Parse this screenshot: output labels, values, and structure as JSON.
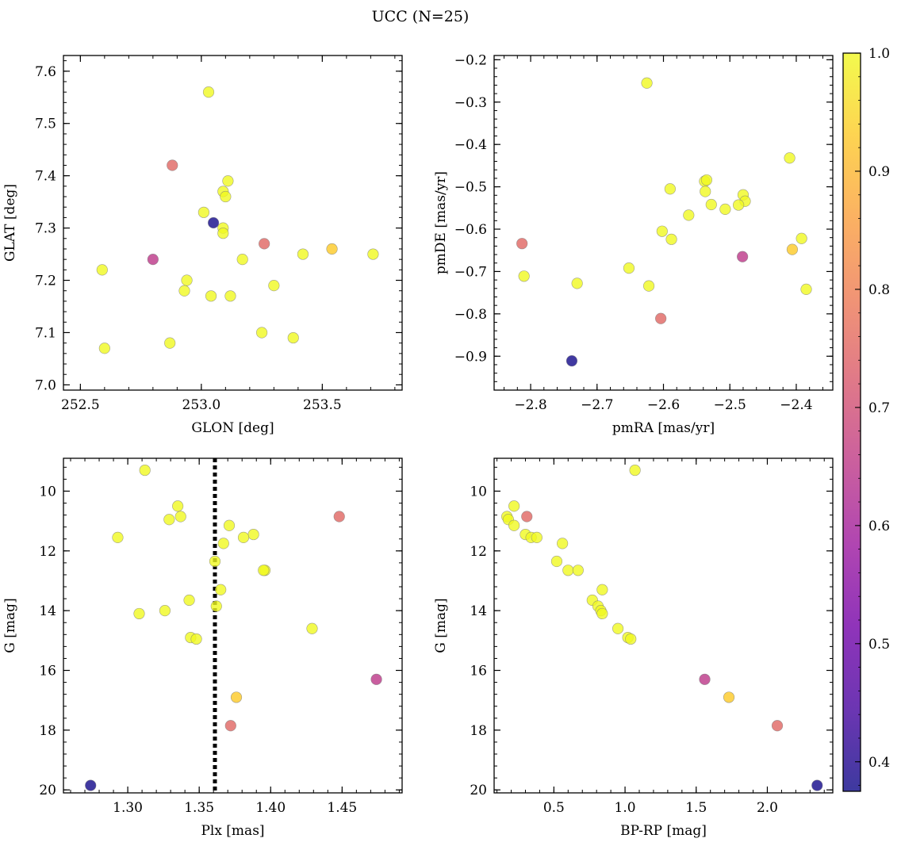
{
  "figure_title": "UCC (N=25)",
  "colorbar": {
    "range": [
      0.375,
      1.0
    ],
    "ticks": [
      0.4,
      0.5,
      0.6,
      0.7,
      0.8,
      0.9,
      1.0
    ],
    "tick_labels": [
      "0.4",
      "0.5",
      "0.6",
      "0.7",
      "0.8",
      "0.9",
      "1.0"
    ],
    "colormap": "plasma",
    "colormap_stops": [
      "#0d0887",
      "#47039f",
      "#7301a8",
      "#9c179e",
      "#bd3786",
      "#d8576b",
      "#ed7953",
      "#fa9e3b",
      "#fdc926",
      "#f0f921"
    ],
    "marker_alpha": 0.8
  },
  "chart_data": [
    {
      "type": "scatter",
      "xlabel": "GLON [deg]",
      "ylabel": "GLAT [deg]",
      "xlim": [
        252.43,
        253.83
      ],
      "ylim": [
        6.99,
        7.63
      ],
      "xticks": [
        252.5,
        253.0,
        253.5
      ],
      "xtick_labels": [
        "252.5",
        "253.0",
        "253.5"
      ],
      "yticks": [
        7.0,
        7.1,
        7.2,
        7.3,
        7.4,
        7.5,
        7.6
      ],
      "ytick_labels": [
        "7.0",
        "7.1",
        "7.2",
        "7.3",
        "7.4",
        "7.5",
        "7.6"
      ],
      "y_inverted": false,
      "points": [
        {
          "x": 253.03,
          "y": 7.56,
          "p": 1.0
        },
        {
          "x": 252.88,
          "y": 7.42,
          "p": 0.75
        },
        {
          "x": 253.11,
          "y": 7.39,
          "p": 1.0
        },
        {
          "x": 253.09,
          "y": 7.37,
          "p": 1.0
        },
        {
          "x": 253.1,
          "y": 7.36,
          "p": 1.0
        },
        {
          "x": 253.01,
          "y": 7.33,
          "p": 1.0
        },
        {
          "x": 253.05,
          "y": 7.31,
          "p": 0.38
        },
        {
          "x": 253.09,
          "y": 7.3,
          "p": 1.0
        },
        {
          "x": 253.09,
          "y": 7.29,
          "p": 1.0
        },
        {
          "x": 253.26,
          "y": 7.27,
          "p": 0.75
        },
        {
          "x": 253.54,
          "y": 7.26,
          "p": 0.93
        },
        {
          "x": 253.42,
          "y": 7.25,
          "p": 1.0
        },
        {
          "x": 253.71,
          "y": 7.25,
          "p": 1.0
        },
        {
          "x": 252.8,
          "y": 7.24,
          "p": 0.65
        },
        {
          "x": 253.17,
          "y": 7.24,
          "p": 1.0
        },
        {
          "x": 252.59,
          "y": 7.22,
          "p": 1.0
        },
        {
          "x": 252.94,
          "y": 7.2,
          "p": 1.0
        },
        {
          "x": 253.3,
          "y": 7.19,
          "p": 1.0
        },
        {
          "x": 252.93,
          "y": 7.18,
          "p": 1.0
        },
        {
          "x": 253.04,
          "y": 7.17,
          "p": 1.0
        },
        {
          "x": 253.12,
          "y": 7.17,
          "p": 1.0
        },
        {
          "x": 253.25,
          "y": 7.1,
          "p": 1.0
        },
        {
          "x": 253.38,
          "y": 7.09,
          "p": 1.0
        },
        {
          "x": 252.87,
          "y": 7.08,
          "p": 1.0
        },
        {
          "x": 252.6,
          "y": 7.07,
          "p": 1.0
        }
      ]
    },
    {
      "type": "scatter",
      "xlabel": "pmRA [mas/yr]",
      "ylabel": "pmDE [mas/yr]",
      "xlim": [
        -2.855,
        -2.345
      ],
      "ylim": [
        -0.98,
        -0.19
      ],
      "xticks": [
        -2.8,
        -2.7,
        -2.6,
        -2.5,
        -2.4
      ],
      "xtick_labels": [
        "−2.8",
        "−2.7",
        "−2.6",
        "−2.5",
        "−2.4"
      ],
      "yticks": [
        -0.9,
        -0.8,
        -0.7,
        -0.6,
        -0.5,
        -0.4,
        -0.3,
        -0.2
      ],
      "ytick_labels": [
        "−0.9",
        "−0.8",
        "−0.7",
        "−0.6",
        "−0.5",
        "−0.4",
        "−0.3",
        "−0.2"
      ],
      "y_inverted": false,
      "points": [
        {
          "x": -2.625,
          "y": -0.255,
          "p": 1.0
        },
        {
          "x": -2.41,
          "y": -0.432,
          "p": 1.0
        },
        {
          "x": -2.538,
          "y": -0.487,
          "p": 1.0
        },
        {
          "x": -2.535,
          "y": -0.484,
          "p": 1.0
        },
        {
          "x": -2.59,
          "y": -0.505,
          "p": 1.0
        },
        {
          "x": -2.537,
          "y": -0.511,
          "p": 1.0
        },
        {
          "x": -2.48,
          "y": -0.519,
          "p": 1.0
        },
        {
          "x": -2.477,
          "y": -0.534,
          "p": 1.0
        },
        {
          "x": -2.528,
          "y": -0.542,
          "p": 1.0
        },
        {
          "x": -2.487,
          "y": -0.543,
          "p": 1.0
        },
        {
          "x": -2.507,
          "y": -0.553,
          "p": 1.0
        },
        {
          "x": -2.562,
          "y": -0.567,
          "p": 1.0
        },
        {
          "x": -2.602,
          "y": -0.605,
          "p": 1.0
        },
        {
          "x": -2.588,
          "y": -0.624,
          "p": 1.0
        },
        {
          "x": -2.392,
          "y": -0.622,
          "p": 1.0
        },
        {
          "x": -2.813,
          "y": -0.634,
          "p": 0.75
        },
        {
          "x": -2.406,
          "y": -0.648,
          "p": 0.93
        },
        {
          "x": -2.481,
          "y": -0.665,
          "p": 0.65
        },
        {
          "x": -2.652,
          "y": -0.692,
          "p": 1.0
        },
        {
          "x": -2.81,
          "y": -0.711,
          "p": 1.0
        },
        {
          "x": -2.73,
          "y": -0.728,
          "p": 1.0
        },
        {
          "x": -2.622,
          "y": -0.734,
          "p": 1.0
        },
        {
          "x": -2.385,
          "y": -0.742,
          "p": 1.0
        },
        {
          "x": -2.604,
          "y": -0.811,
          "p": 0.75
        },
        {
          "x": -2.738,
          "y": -0.911,
          "p": 0.38
        }
      ]
    },
    {
      "type": "scatter",
      "xlabel": "Plx [mas]",
      "ylabel": "G [mag]",
      "xlim": [
        1.255,
        1.492
      ],
      "ylim": [
        20.1,
        8.9
      ],
      "xticks": [
        1.3,
        1.35,
        1.4,
        1.45
      ],
      "xtick_labels": [
        "1.30",
        "1.35",
        "1.40",
        "1.45"
      ],
      "yticks": [
        10,
        12,
        14,
        16,
        18,
        20
      ],
      "ytick_labels": [
        "10",
        "12",
        "14",
        "16",
        "18",
        "20"
      ],
      "y_inverted": true,
      "vline": {
        "x": 1.361,
        "style": "dotted"
      },
      "points": [
        {
          "x": 1.312,
          "y": 9.3,
          "p": 1.0
        },
        {
          "x": 1.335,
          "y": 10.5,
          "p": 1.0
        },
        {
          "x": 1.337,
          "y": 10.85,
          "p": 1.0
        },
        {
          "x": 1.329,
          "y": 10.95,
          "p": 1.0
        },
        {
          "x": 1.448,
          "y": 10.85,
          "p": 0.75
        },
        {
          "x": 1.371,
          "y": 11.15,
          "p": 1.0
        },
        {
          "x": 1.388,
          "y": 11.45,
          "p": 1.0
        },
        {
          "x": 1.381,
          "y": 11.55,
          "p": 1.0
        },
        {
          "x": 1.293,
          "y": 11.55,
          "p": 1.0
        },
        {
          "x": 1.367,
          "y": 11.75,
          "p": 1.0
        },
        {
          "x": 1.361,
          "y": 12.35,
          "p": 1.0
        },
        {
          "x": 1.396,
          "y": 12.65,
          "p": 1.0
        },
        {
          "x": 1.395,
          "y": 12.65,
          "p": 1.0
        },
        {
          "x": 1.365,
          "y": 13.3,
          "p": 1.0
        },
        {
          "x": 1.343,
          "y": 13.65,
          "p": 1.0
        },
        {
          "x": 1.362,
          "y": 13.85,
          "p": 1.0
        },
        {
          "x": 1.326,
          "y": 14.0,
          "p": 1.0
        },
        {
          "x": 1.308,
          "y": 14.1,
          "p": 1.0
        },
        {
          "x": 1.429,
          "y": 14.6,
          "p": 1.0
        },
        {
          "x": 1.344,
          "y": 14.9,
          "p": 1.0
        },
        {
          "x": 1.348,
          "y": 14.95,
          "p": 1.0
        },
        {
          "x": 1.474,
          "y": 16.3,
          "p": 0.65
        },
        {
          "x": 1.376,
          "y": 16.9,
          "p": 0.93
        },
        {
          "x": 1.372,
          "y": 17.85,
          "p": 0.75
        },
        {
          "x": 1.274,
          "y": 19.85,
          "p": 0.38
        }
      ]
    },
    {
      "type": "scatter",
      "xlabel": "BP-RP [mag]",
      "ylabel": "G [mag]",
      "xlim": [
        0.08,
        2.46
      ],
      "ylim": [
        20.1,
        8.9
      ],
      "xticks": [
        0.5,
        1.0,
        1.5,
        2.0
      ],
      "xtick_labels": [
        "0.5",
        "1.0",
        "1.5",
        "2.0"
      ],
      "yticks": [
        10,
        12,
        14,
        16,
        18,
        20
      ],
      "ytick_labels": [
        "10",
        "12",
        "14",
        "16",
        "18",
        "20"
      ],
      "y_inverted": true,
      "points": [
        {
          "x": 1.07,
          "y": 9.3,
          "p": 1.0
        },
        {
          "x": 0.22,
          "y": 10.5,
          "p": 1.0
        },
        {
          "x": 0.17,
          "y": 10.85,
          "p": 1.0
        },
        {
          "x": 0.18,
          "y": 10.95,
          "p": 1.0
        },
        {
          "x": 0.31,
          "y": 10.85,
          "p": 0.75
        },
        {
          "x": 0.22,
          "y": 11.15,
          "p": 1.0
        },
        {
          "x": 0.3,
          "y": 11.45,
          "p": 1.0
        },
        {
          "x": 0.34,
          "y": 11.55,
          "p": 1.0
        },
        {
          "x": 0.38,
          "y": 11.55,
          "p": 1.0
        },
        {
          "x": 0.56,
          "y": 11.75,
          "p": 1.0
        },
        {
          "x": 0.52,
          "y": 12.35,
          "p": 1.0
        },
        {
          "x": 0.6,
          "y": 12.65,
          "p": 1.0
        },
        {
          "x": 0.67,
          "y": 12.65,
          "p": 1.0
        },
        {
          "x": 0.84,
          "y": 13.3,
          "p": 1.0
        },
        {
          "x": 0.77,
          "y": 13.65,
          "p": 1.0
        },
        {
          "x": 0.81,
          "y": 13.85,
          "p": 1.0
        },
        {
          "x": 0.83,
          "y": 14.0,
          "p": 1.0
        },
        {
          "x": 0.84,
          "y": 14.1,
          "p": 1.0
        },
        {
          "x": 0.95,
          "y": 14.6,
          "p": 1.0
        },
        {
          "x": 1.02,
          "y": 14.9,
          "p": 1.0
        },
        {
          "x": 1.04,
          "y": 14.95,
          "p": 1.0
        },
        {
          "x": 1.56,
          "y": 16.3,
          "p": 0.65
        },
        {
          "x": 1.73,
          "y": 16.9,
          "p": 0.93
        },
        {
          "x": 2.07,
          "y": 17.85,
          "p": 0.75
        },
        {
          "x": 2.35,
          "y": 19.85,
          "p": 0.38
        }
      ]
    }
  ]
}
